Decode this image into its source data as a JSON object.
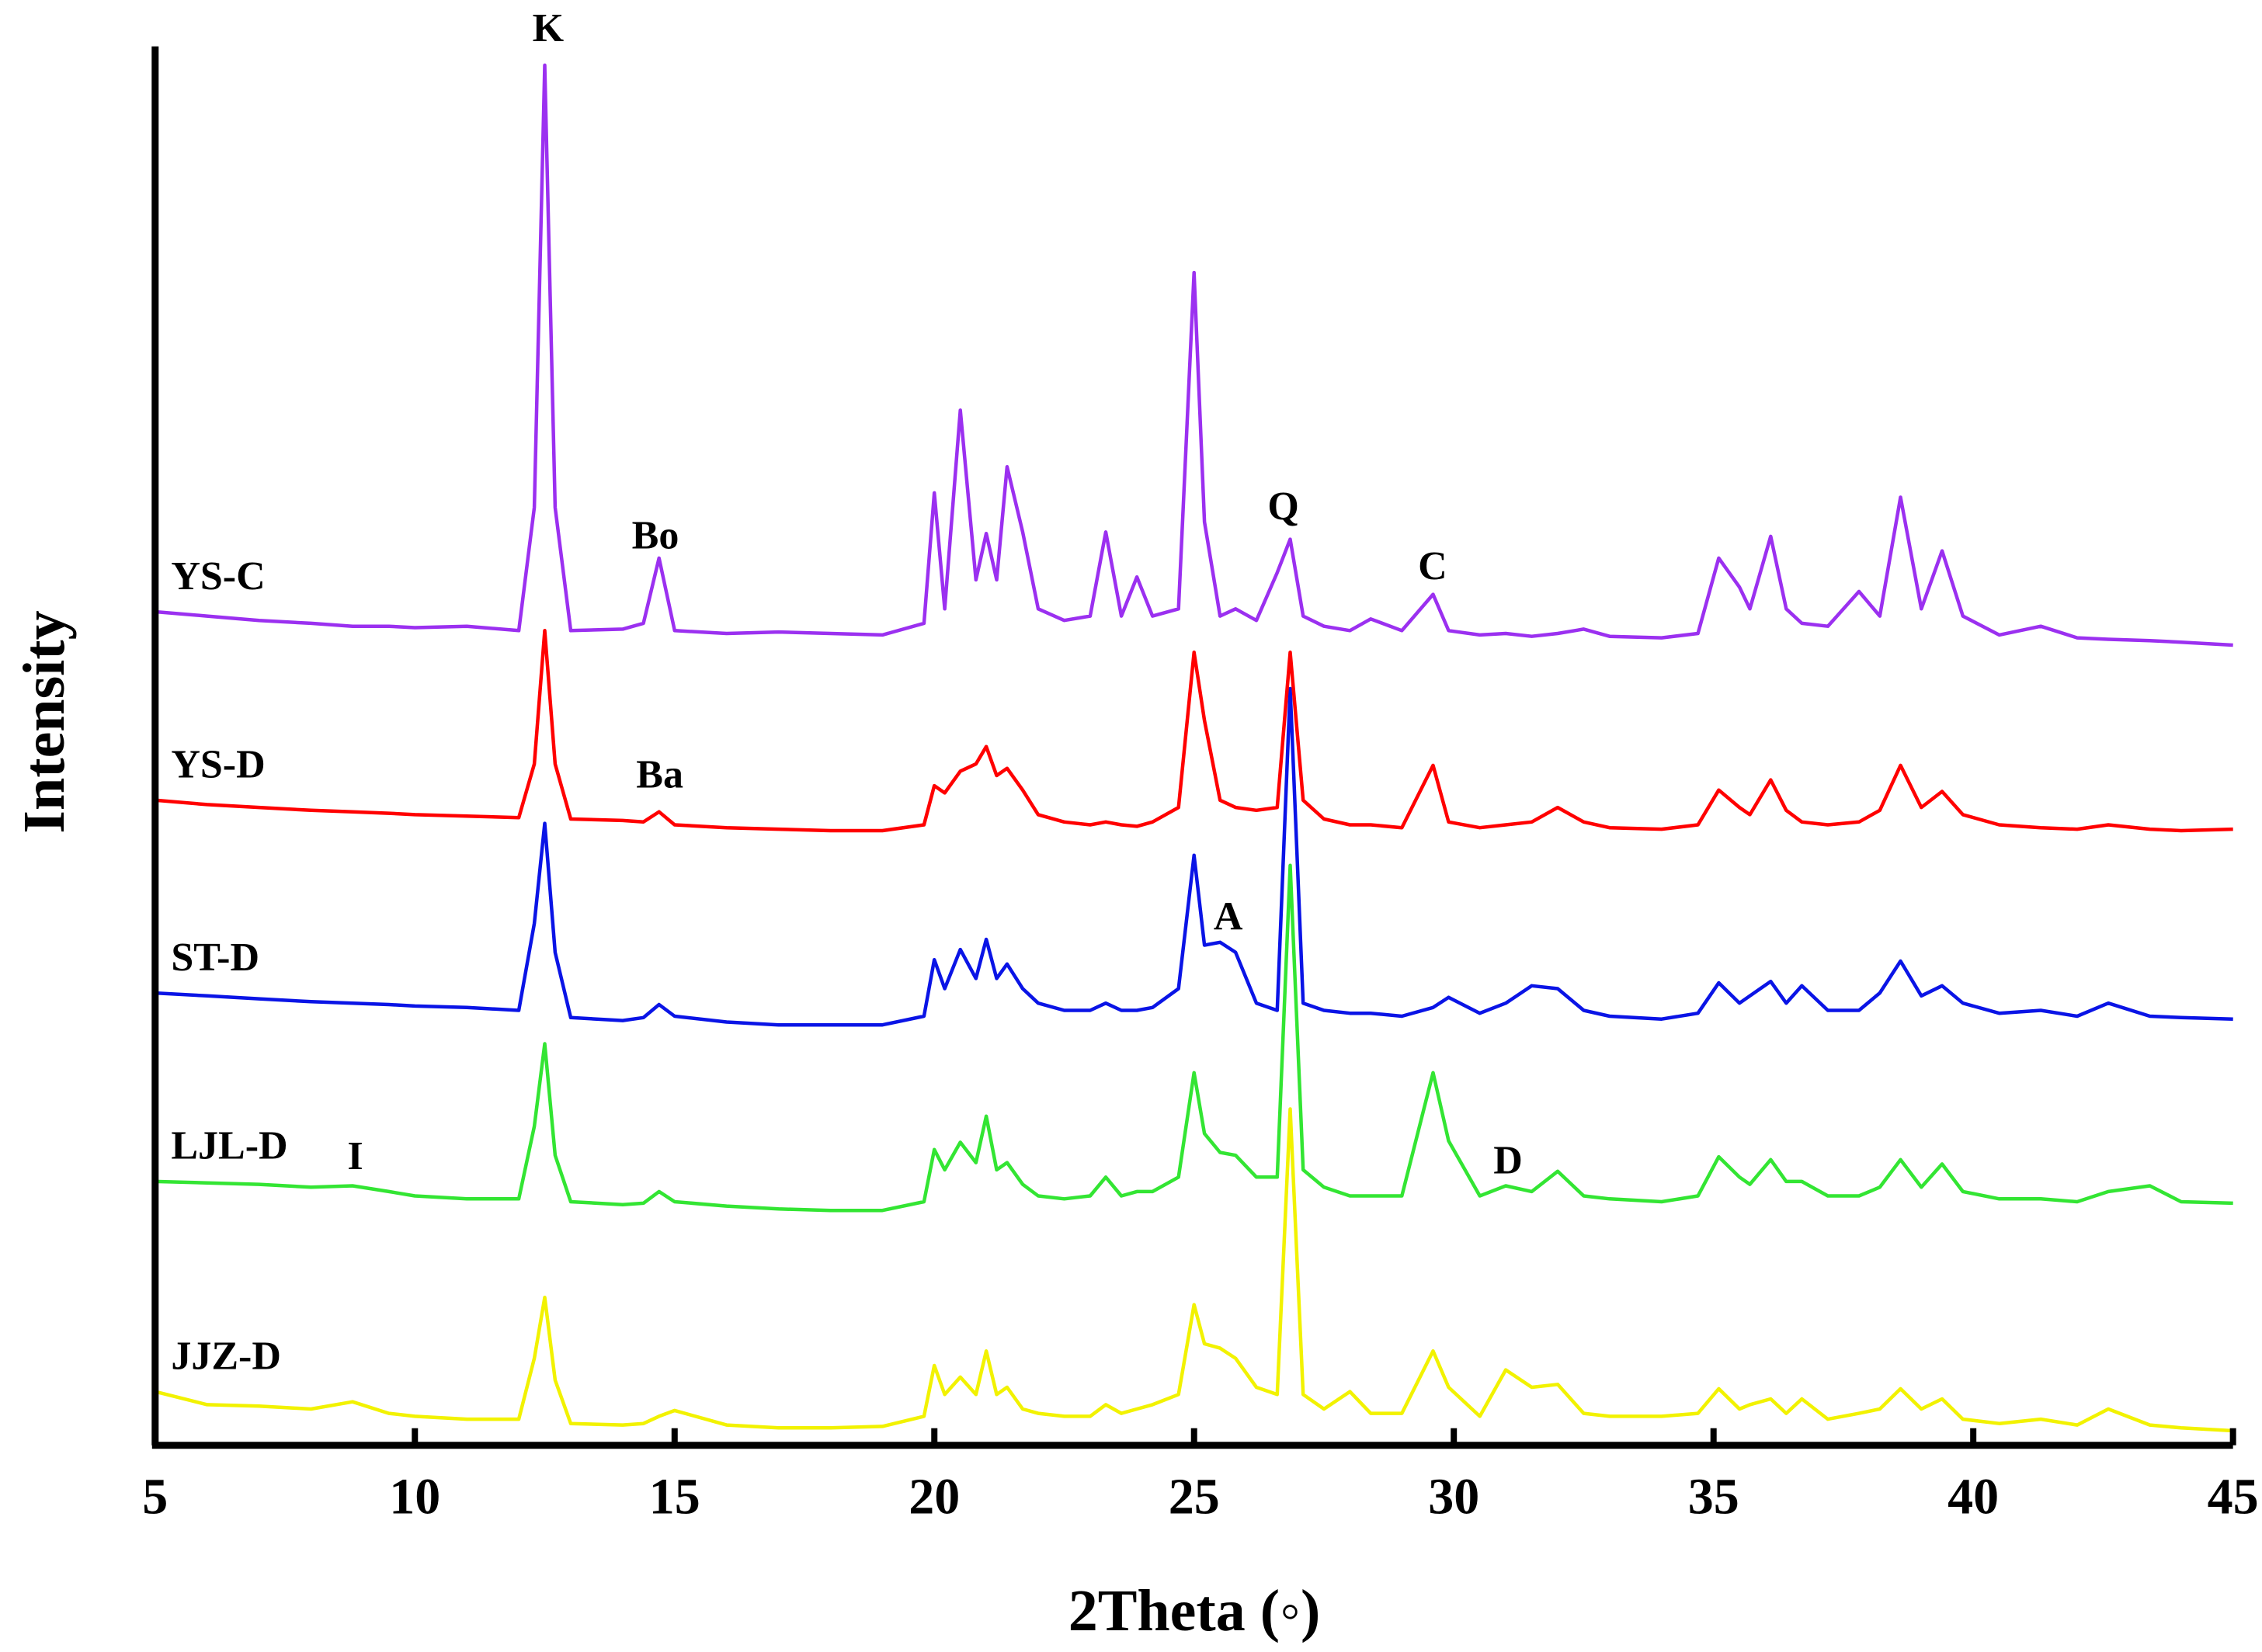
{
  "chart_data": {
    "type": "line",
    "xlabel": "2Theta (◦)",
    "ylabel": "Intensity",
    "x": [
      5,
      6,
      7,
      8,
      8.8,
      9.5,
      10,
      11,
      12,
      12.3,
      12.5,
      12.7,
      13,
      14,
      14.4,
      14.7,
      15,
      16,
      17,
      18,
      19,
      19.8,
      20.0,
      20.2,
      20.5,
      20.8,
      21.0,
      21.2,
      21.4,
      21.7,
      22,
      22.5,
      23,
      23.3,
      23.6,
      23.9,
      24.2,
      24.7,
      25.0,
      25.2,
      25.5,
      25.8,
      26.2,
      26.6,
      26.85,
      27.1,
      27.5,
      28,
      28.4,
      29,
      29.6,
      29.9,
      30.5,
      31,
      31.5,
      32,
      32.5,
      33,
      34,
      34.7,
      35.1,
      35.5,
      35.7,
      36.1,
      36.4,
      36.7,
      37.2,
      37.8,
      38.2,
      38.6,
      39.0,
      39.4,
      39.8,
      40.5,
      41.3,
      42,
      42.6,
      43.4,
      44,
      45
    ],
    "series": [
      {
        "name": "YS-C",
        "color": "#9b30f0",
        "values": [
          575,
          572,
          569,
          567,
          565,
          565,
          564,
          565,
          562,
          647,
          952,
          647,
          562,
          563,
          567,
          612,
          562,
          560,
          561,
          560,
          559,
          567,
          657,
          577,
          714,
          597,
          629,
          597,
          675,
          630,
          577,
          569,
          572,
          630,
          572,
          599,
          572,
          577,
          809,
          637,
          572,
          577,
          569,
          602,
          625,
          572,
          565,
          562,
          570,
          562,
          587,
          562,
          559,
          560,
          558,
          560,
          563,
          558,
          557,
          560,
          612,
          592,
          577,
          627,
          577,
          567,
          565,
          589,
          572,
          654,
          577,
          617,
          572,
          559,
          565,
          557,
          556,
          555,
          554,
          552
        ]
      },
      {
        "name": "YS-D",
        "color": "#ff0000",
        "values": [
          445,
          442,
          440,
          438,
          437,
          436,
          435,
          434,
          433,
          470,
          562,
          470,
          432,
          431,
          430,
          437,
          428,
          426,
          425,
          424,
          424,
          428,
          455,
          450,
          465,
          470,
          482,
          462,
          467,
          452,
          435,
          430,
          428,
          430,
          428,
          427,
          430,
          440,
          547,
          500,
          445,
          440,
          438,
          440,
          547,
          445,
          432,
          428,
          428,
          426,
          469,
          430,
          426,
          428,
          430,
          440,
          430,
          426,
          425,
          428,
          452,
          440,
          435,
          459,
          438,
          430,
          428,
          430,
          438,
          469,
          440,
          451,
          435,
          428,
          426,
          425,
          428,
          425,
          424,
          425
        ]
      },
      {
        "name": "ST-D",
        "color": "#0a14e6",
        "values": [
          312,
          310,
          308,
          306,
          305,
          304,
          303,
          302,
          300,
          360,
          429,
          340,
          295,
          293,
          295,
          304,
          296,
          292,
          290,
          290,
          290,
          296,
          335,
          315,
          342,
          322,
          349,
          322,
          332,
          315,
          305,
          300,
          300,
          305,
          300,
          300,
          302,
          315,
          407,
          345,
          347,
          340,
          305,
          300,
          522,
          305,
          300,
          298,
          298,
          296,
          302,
          309,
          298,
          305,
          317,
          315,
          300,
          296,
          294,
          298,
          319,
          305,
          310,
          320,
          305,
          317,
          300,
          300,
          312,
          334,
          310,
          317,
          305,
          298,
          300,
          296,
          305,
          296,
          295,
          294
        ]
      },
      {
        "name": "LJL-D",
        "color": "#33e533",
        "values": [
          182,
          181,
          180,
          178,
          179,
          175,
          172,
          170,
          170,
          220,
          277,
          200,
          168,
          166,
          167,
          175,
          168,
          165,
          163,
          162,
          162,
          168,
          204,
          190,
          209,
          195,
          227,
          190,
          195,
          180,
          172,
          170,
          172,
          185,
          172,
          175,
          175,
          185,
          257,
          215,
          202,
          200,
          185,
          185,
          400,
          190,
          178,
          172,
          172,
          172,
          257,
          210,
          172,
          179,
          175,
          189,
          172,
          170,
          168,
          172,
          199,
          185,
          180,
          197,
          182,
          182,
          172,
          172,
          178,
          197,
          178,
          194,
          175,
          170,
          170,
          168,
          175,
          179,
          168,
          167
        ]
      },
      {
        "name": "JJZ-D",
        "color": "#f2f200",
        "values": [
          37,
          28,
          27,
          25,
          30,
          22,
          20,
          18,
          18,
          60,
          102,
          45,
          15,
          14,
          15,
          20,
          24,
          14,
          12,
          12,
          13,
          20,
          55,
          35,
          47,
          35,
          65,
          35,
          40,
          25,
          22,
          20,
          20,
          28,
          22,
          25,
          28,
          35,
          97,
          70,
          67,
          60,
          40,
          35,
          232,
          35,
          25,
          37,
          22,
          22,
          65,
          40,
          20,
          52,
          40,
          42,
          22,
          20,
          20,
          22,
          39,
          25,
          28,
          32,
          22,
          32,
          18,
          22,
          25,
          39,
          25,
          32,
          18,
          15,
          18,
          14,
          25,
          14,
          12,
          10
        ]
      }
    ],
    "annotations": [
      "K",
      "Bo",
      "Q",
      "C",
      "Ba",
      "A",
      "I",
      "D"
    ],
    "xlim": [
      5,
      45
    ],
    "xticks": [
      5,
      10,
      15,
      20,
      25,
      30,
      35,
      40,
      45
    ],
    "ylim": [
      0,
      965
    ]
  }
}
